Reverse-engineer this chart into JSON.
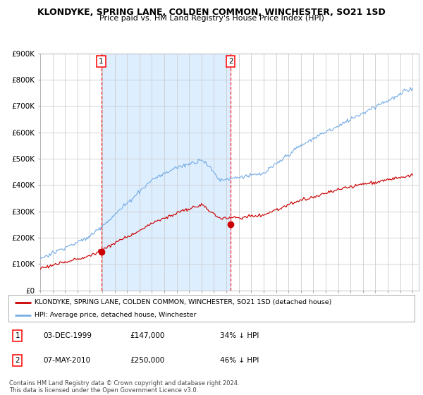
{
  "title": "KLONDYKE, SPRING LANE, COLDEN COMMON, WINCHESTER, SO21 1SD",
  "subtitle": "Price paid vs. HM Land Registry's House Price Index (HPI)",
  "title_fontsize": 9,
  "subtitle_fontsize": 8,
  "bg_color": "#ffffff",
  "plot_bg_color": "#ffffff",
  "grid_color": "#cccccc",
  "hpi_color": "#7aafe6",
  "price_color": "#cc0000",
  "highlight_fill": "#ddeeff",
  "ylim": [
    0,
    900000
  ],
  "yticks": [
    0,
    100000,
    200000,
    300000,
    400000,
    500000,
    600000,
    700000,
    800000,
    900000
  ],
  "ytick_labels": [
    "£0",
    "£100K",
    "£200K",
    "£300K",
    "£400K",
    "£500K",
    "£600K",
    "£700K",
    "£800K",
    "£900K"
  ],
  "year_start": 1995,
  "year_end": 2025,
  "sale1_date": 1999.92,
  "sale1_price": 147000,
  "sale2_date": 2010.35,
  "sale2_price": 250000,
  "legend_label1": "KLONDYKE, SPRING LANE, COLDEN COMMON, WINCHESTER, SO21 1SD (detached house)",
  "legend_label2": "HPI: Average price, detached house, Winchester",
  "annotation1_date": "03-DEC-1999",
  "annotation1_price": "£147,000",
  "annotation1_hpi": "34% ↓ HPI",
  "annotation2_date": "07-MAY-2010",
  "annotation2_price": "£250,000",
  "annotation2_hpi": "46% ↓ HPI",
  "footer": "Contains HM Land Registry data © Crown copyright and database right 2024.\nThis data is licensed under the Open Government Licence v3.0."
}
